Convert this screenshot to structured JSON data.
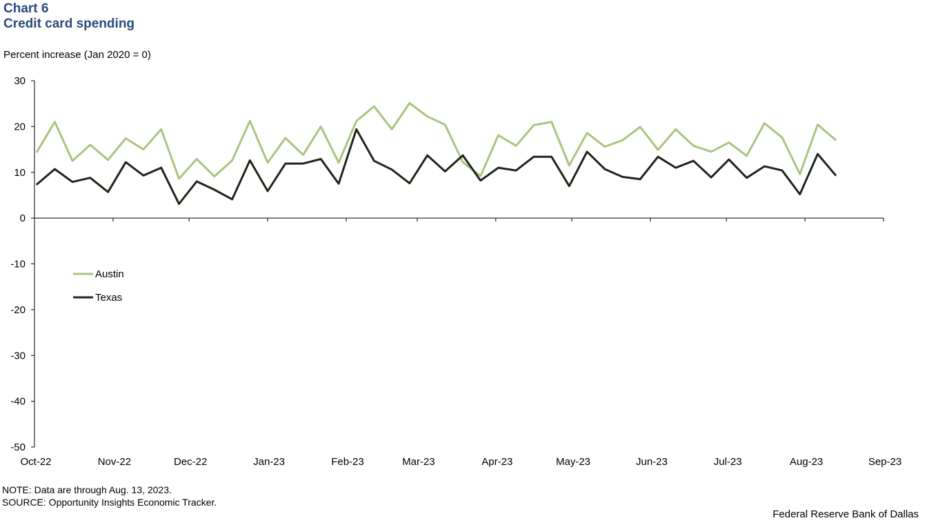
{
  "header": {
    "chart_number": "Chart 6",
    "title": "Credit card spending"
  },
  "footer": {
    "note": "NOTE: Data are through Aug. 13, 2023.",
    "source": "SOURCE: Opportunity Insights Economic Tracker.",
    "credit": "Federal Reserve Bank of Dallas"
  },
  "chart_data": {
    "type": "line",
    "title": "Credit card spending",
    "ylabel": "Percent increase (Jan 2020 = 0)",
    "xlabel": "",
    "ylim": [
      -50,
      30
    ],
    "yticks": [
      30,
      20,
      10,
      0,
      -10,
      -20,
      -30,
      -40,
      -50
    ],
    "x_tick_labels": [
      "Oct-22",
      "Nov-22",
      "Dec-22",
      "Jan-23",
      "Feb-23",
      "Mar-23",
      "Apr-23",
      "May-23",
      "Jun-23",
      "Jul-23",
      "Aug-23",
      "Sep-23"
    ],
    "x_tick_dates": [
      "2022-10-01",
      "2022-11-01",
      "2022-12-01",
      "2023-01-01",
      "2023-02-01",
      "2023-03-01",
      "2023-04-01",
      "2023-05-01",
      "2023-06-01",
      "2023-07-01",
      "2023-08-01",
      "2023-09-01"
    ],
    "x": [
      "2022-10-02",
      "2022-10-09",
      "2022-10-16",
      "2022-10-23",
      "2022-10-30",
      "2022-11-06",
      "2022-11-13",
      "2022-11-20",
      "2022-11-27",
      "2022-12-04",
      "2022-12-11",
      "2022-12-18",
      "2022-12-25",
      "2023-01-01",
      "2023-01-08",
      "2023-01-15",
      "2023-01-22",
      "2023-01-29",
      "2023-02-05",
      "2023-02-12",
      "2023-02-19",
      "2023-02-26",
      "2023-03-05",
      "2023-03-12",
      "2023-03-19",
      "2023-03-26",
      "2023-04-02",
      "2023-04-09",
      "2023-04-16",
      "2023-04-23",
      "2023-04-30",
      "2023-05-07",
      "2023-05-14",
      "2023-05-21",
      "2023-05-28",
      "2023-06-04",
      "2023-06-11",
      "2023-06-18",
      "2023-06-25",
      "2023-07-02",
      "2023-07-09",
      "2023-07-16",
      "2023-07-23",
      "2023-07-30",
      "2023-08-06",
      "2023-08-13"
    ],
    "series": [
      {
        "name": "Austin",
        "color": "#a9c47f",
        "values": [
          14.5,
          21.0,
          12.5,
          16.0,
          12.7,
          17.4,
          15.0,
          19.4,
          8.6,
          12.9,
          9.1,
          12.6,
          21.2,
          12.1,
          17.5,
          13.8,
          20.0,
          12.1,
          21.2,
          24.4,
          19.4,
          25.1,
          22.2,
          20.4,
          12.2,
          9.2,
          18.1,
          15.8,
          20.3,
          21.0,
          11.5,
          18.6,
          15.6,
          17.0,
          19.9,
          14.9,
          19.4,
          15.8,
          14.5,
          16.5,
          13.6,
          20.7,
          17.6,
          9.6,
          20.4,
          17.1
        ]
      },
      {
        "name": "Texas",
        "color": "#1f2418",
        "values": [
          7.4,
          10.7,
          7.9,
          8.8,
          5.7,
          12.2,
          9.3,
          11.0,
          3.1,
          8.0,
          6.2,
          4.1,
          12.6,
          5.9,
          11.9,
          11.9,
          12.9,
          7.5,
          19.4,
          12.5,
          10.6,
          7.6,
          13.7,
          10.2,
          13.7,
          8.2,
          11.0,
          10.4,
          13.4,
          13.4,
          7.0,
          14.5,
          10.7,
          9.0,
          8.5,
          13.4,
          11.0,
          12.5,
          8.9,
          12.8,
          8.8,
          11.3,
          10.4,
          5.2,
          14.0,
          9.4
        ]
      }
    ],
    "legend": {
      "position": "left-middle",
      "entries": [
        "Austin",
        "Texas"
      ]
    },
    "grid": false
  }
}
